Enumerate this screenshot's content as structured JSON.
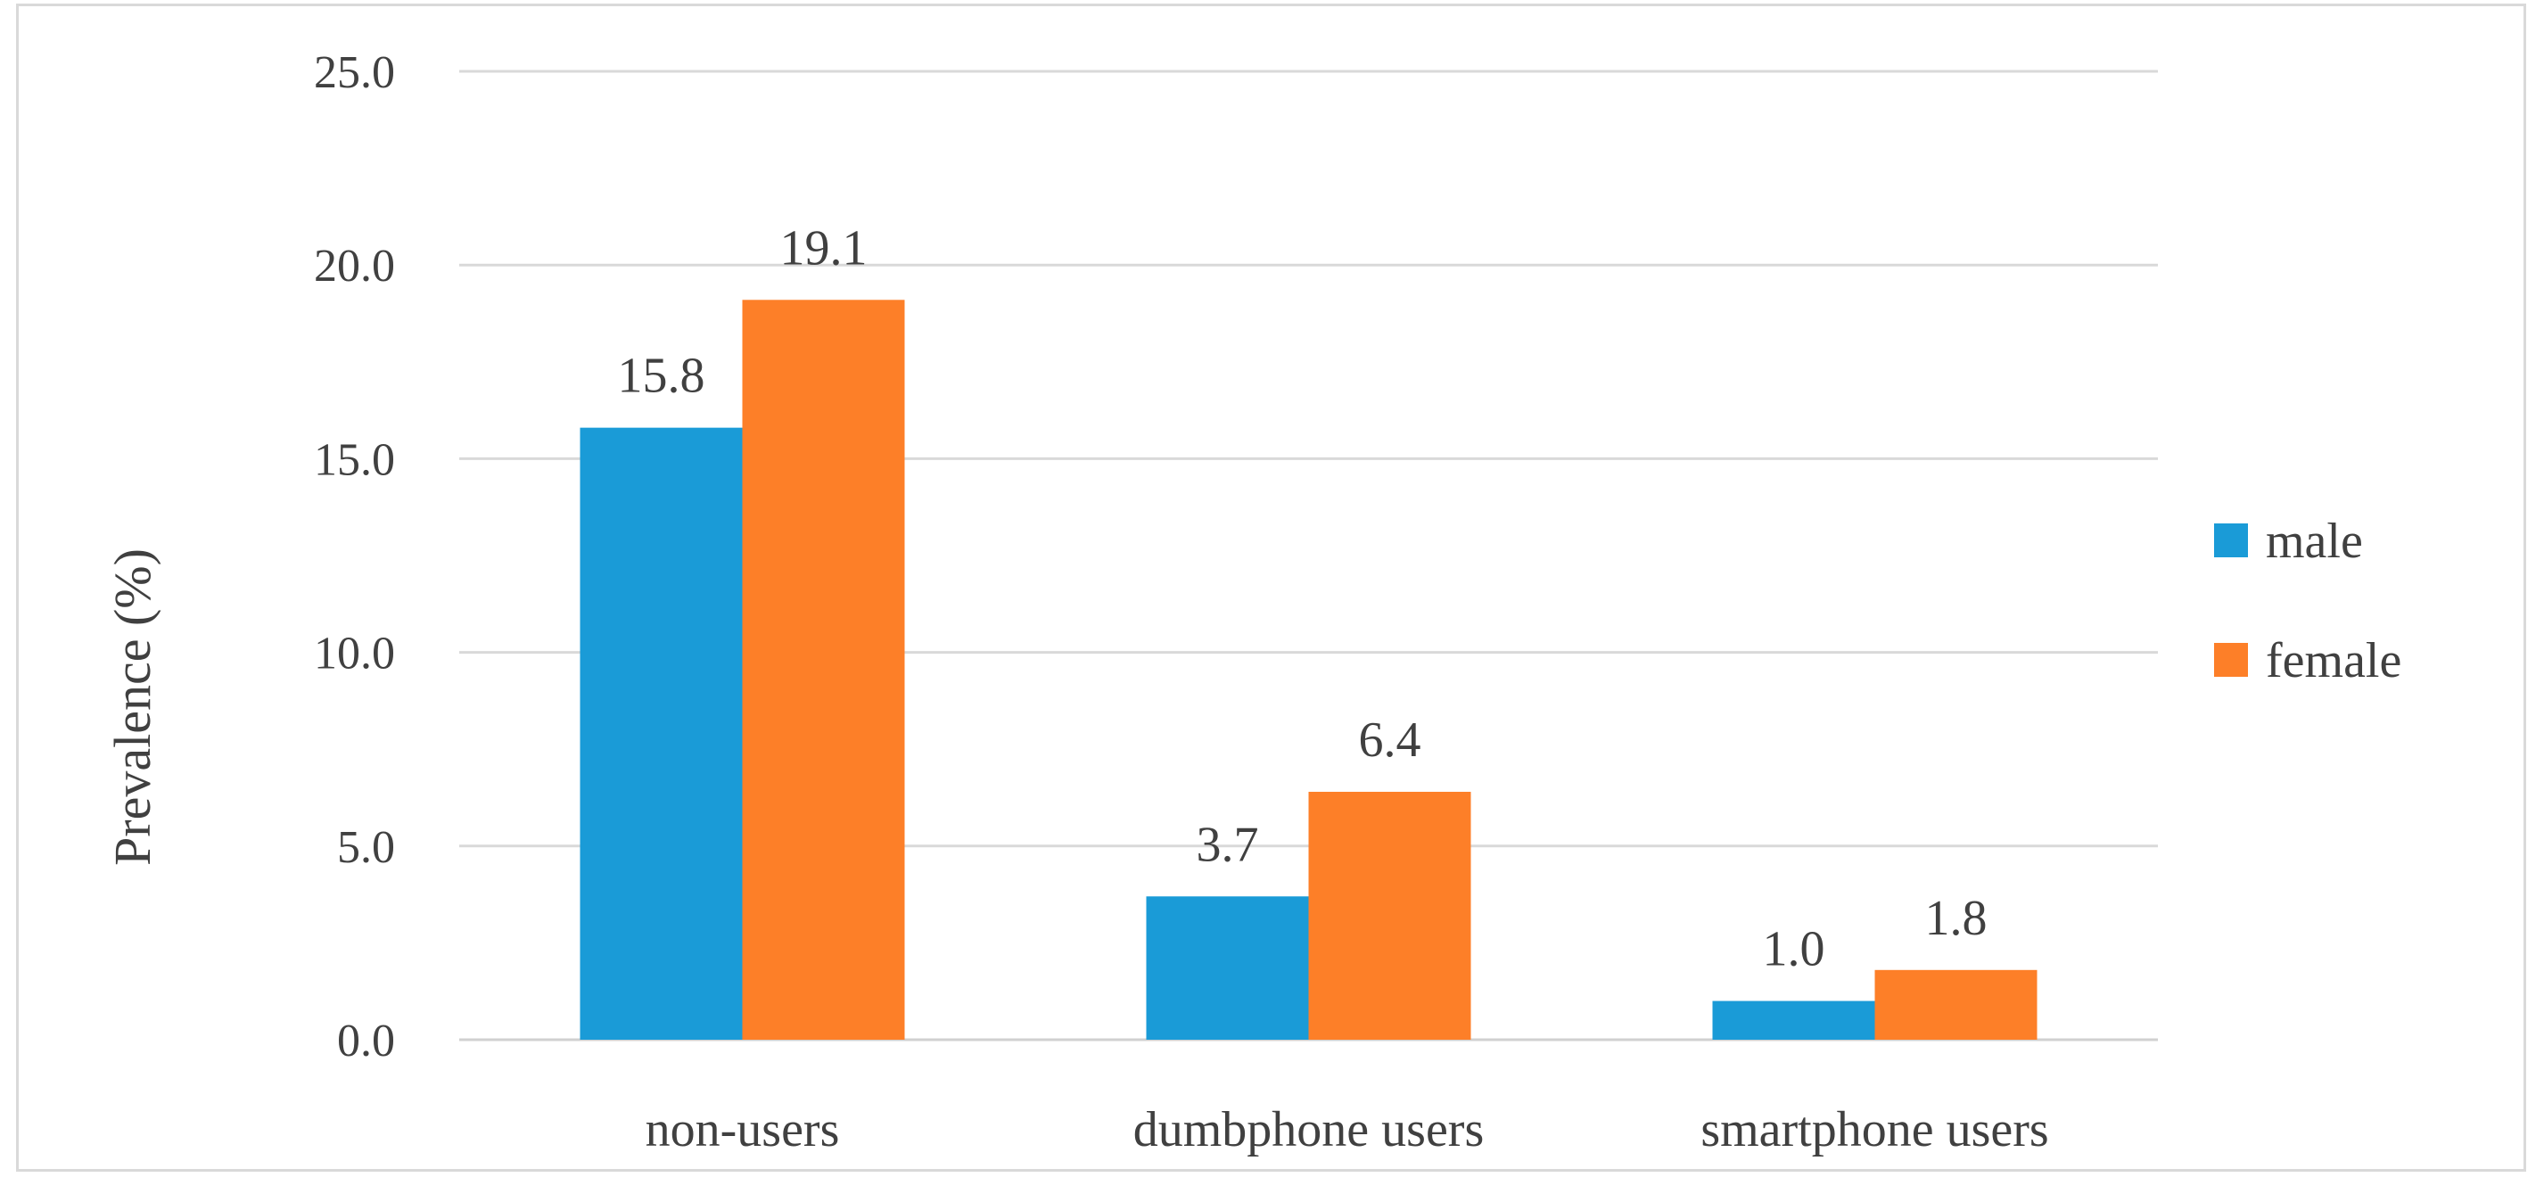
{
  "chart_data": {
    "type": "bar",
    "title": "",
    "xlabel": "",
    "ylabel": "Prevalence (%)",
    "ylim": [
      0,
      25
    ],
    "yticks": [
      "0.0",
      "5.0",
      "10.0",
      "15.0",
      "20.0",
      "25.0"
    ],
    "grid": true,
    "legend_position": "right",
    "categories": [
      "non-users",
      "dumbphone users",
      "smartphone users"
    ],
    "series": [
      {
        "name": "male",
        "color": "#1a9bd7",
        "values": [
          15.8,
          3.7,
          1.0
        ],
        "labels": [
          "15.8",
          "3.7",
          "1.0"
        ]
      },
      {
        "name": "female",
        "color": "#fd7f28",
        "values": [
          19.1,
          6.4,
          1.8
        ],
        "labels": [
          "19.1",
          "6.4",
          "1.8"
        ]
      }
    ]
  }
}
